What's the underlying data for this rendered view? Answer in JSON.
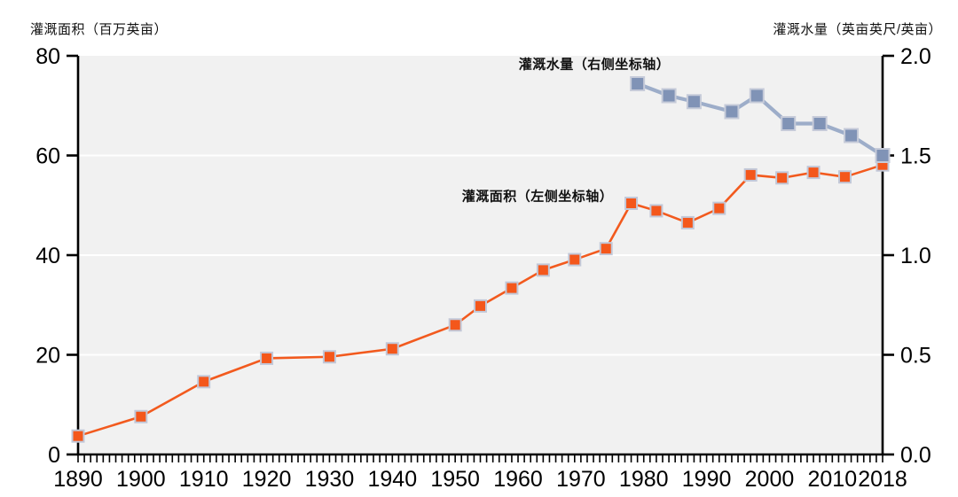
{
  "chart_data": {
    "type": "line",
    "title": "",
    "left_axis": {
      "title": "灌溉面积（百万英亩）",
      "min": 0,
      "max": 80,
      "tick_values": [
        0,
        20,
        40,
        60,
        80
      ],
      "tick_labels": [
        "0",
        "20",
        "40",
        "60",
        "80"
      ]
    },
    "right_axis": {
      "title": "灌溉水量（英亩英尺/英亩）",
      "min": 0,
      "max": 2.0,
      "tick_values": [
        0,
        0.5,
        1.0,
        1.5,
        2.0
      ],
      "tick_labels": [
        "0.0",
        "0.5",
        "1.0",
        "1.5",
        "2.0"
      ]
    },
    "x_axis": {
      "min": 1890,
      "max": 2018,
      "minor_tick_step_years": 1,
      "tick_years": [
        1890,
        1900,
        1910,
        1920,
        1930,
        1940,
        1950,
        1960,
        1970,
        1980,
        1990,
        2000,
        2010,
        2018
      ],
      "tick_labels": [
        "1890",
        "1900",
        "1910",
        "1920",
        "1930",
        "1940",
        "1950",
        "1960",
        "1970",
        "1980",
        "1990",
        "2000",
        "2010",
        "2018"
      ]
    },
    "grid": {
      "color": "#ffffff",
      "left_values": [
        20,
        40,
        60
      ]
    },
    "plot_background": "#f1f1f1",
    "axis_color": "#000000",
    "series": [
      {
        "name": "灌溉面积（左侧坐标轴）",
        "axis": "left",
        "color": "#f4571b",
        "line_color": "#f25a1e",
        "marker_border": "#c2c8d8",
        "line_width": 2.6,
        "marker_size": 13,
        "x": [
          1890,
          1900,
          1910,
          1920,
          1930,
          1940,
          1950,
          1954,
          1959,
          1964,
          1969,
          1974,
          1978,
          1982,
          1987,
          1992,
          1997,
          2002,
          2007,
          2012,
          2018
        ],
        "values": [
          3.7,
          7.6,
          14.6,
          19.3,
          19.6,
          21.2,
          26.0,
          29.8,
          33.4,
          37.0,
          39.1,
          41.3,
          50.4,
          48.9,
          46.5,
          49.4,
          56.1,
          55.5,
          56.6,
          55.7,
          58.1
        ]
      },
      {
        "name": "灌溉水量（右侧坐标轴）",
        "axis": "right",
        "color": "#8093b6",
        "line_color": "#9dadc9",
        "marker_border": "#c6cbd9",
        "line_width": 4.2,
        "marker_size": 15,
        "x": [
          1979,
          1984,
          1988,
          1994,
          1998,
          2003,
          2008,
          2013,
          2018
        ],
        "values": [
          1.86,
          1.8,
          1.77,
          1.72,
          1.8,
          1.66,
          1.66,
          1.6,
          1.5
        ]
      }
    ]
  }
}
